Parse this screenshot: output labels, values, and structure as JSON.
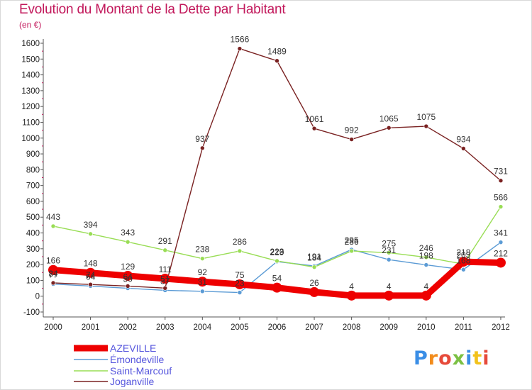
{
  "title": "Evolution du Montant de la Dette par Habitant",
  "unit_label": "(en €)",
  "logo_text": "Proxiti",
  "chart_data": {
    "type": "line",
    "title": "Evolution du Montant de la Dette par Habitant",
    "subtitle": "(en €)",
    "xlabel": "",
    "ylabel": "",
    "x": [
      "2000",
      "2001",
      "2002",
      "2003",
      "2004",
      "2005",
      "2006",
      "2007",
      "2008",
      "2009",
      "2010",
      "2011",
      "2012"
    ],
    "yticks": [
      "-100",
      "0",
      "100",
      "200",
      "300",
      "400",
      "500",
      "600",
      "700",
      "800",
      "900",
      "1000",
      "1100",
      "1200",
      "1300",
      "1400",
      "1500",
      "1600"
    ],
    "ylim": [
      -100,
      1600
    ],
    "grid": false,
    "legend_position": "bottom-left",
    "series": [
      {
        "name": "AZEVILLE",
        "color": "#ee0000",
        "values": [
          166,
          148,
          129,
          111,
          92,
          75,
          54,
          26,
          4,
          4,
          4,
          218,
          212
        ],
        "labels": [
          "166",
          "148",
          "129",
          "111",
          "92",
          "75",
          "54",
          "26",
          "4",
          "4",
          "4",
          "218",
          "212"
        ]
      },
      {
        "name": "Émondeville",
        "color": "#5b9bd5",
        "values": [
          77,
          64,
          50,
          37,
          31,
          23,
          219,
          191,
          295,
          231,
          198,
          168,
          341
        ],
        "labels": [
          "77",
          "64",
          "50",
          "37",
          "31",
          "23",
          "219",
          "191",
          "295",
          "231",
          "198",
          "168",
          "341"
        ]
      },
      {
        "name": "Saint-Marcouf",
        "color": "#99dd55",
        "values": [
          443,
          394,
          343,
          291,
          238,
          286,
          223,
          184,
          286,
          275,
          246,
          203,
          566
        ],
        "labels": [
          "443",
          "394",
          "343",
          "291",
          "238",
          "286",
          "223",
          "184",
          "286",
          "275",
          "246",
          "203",
          "566"
        ]
      },
      {
        "name": "Joganville",
        "color": "#7a2222",
        "values": [
          84,
          74,
          64,
          51,
          937,
          1566,
          1489,
          1061,
          992,
          1065,
          1075,
          934,
          731
        ],
        "labels": [
          "84",
          "74",
          "64",
          "51",
          "937",
          "1566",
          "1489",
          "1061",
          "992",
          "1065",
          "1075",
          "934",
          "731"
        ]
      }
    ]
  }
}
